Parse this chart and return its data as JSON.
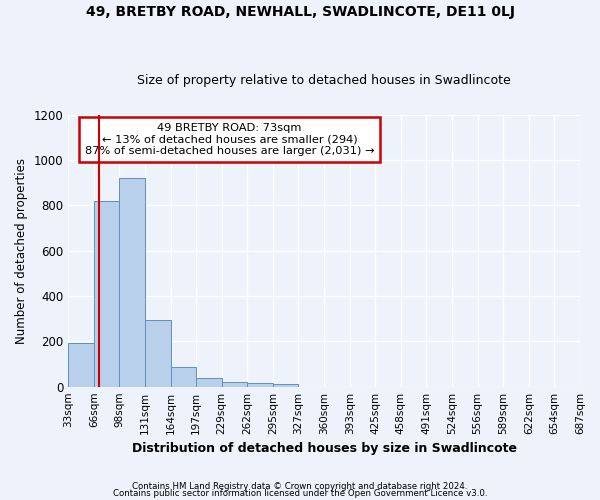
{
  "title1": "49, BRETBY ROAD, NEWHALL, SWADLINCOTE, DE11 0LJ",
  "title2": "Size of property relative to detached houses in Swadlincote",
  "xlabel": "Distribution of detached houses by size in Swadlincote",
  "ylabel": "Number of detached properties",
  "footnote1": "Contains HM Land Registry data © Crown copyright and database right 2024.",
  "footnote2": "Contains public sector information licensed under the Open Government Licence v3.0.",
  "annotation_line1": "49 BRETBY ROAD: 73sqm",
  "annotation_line2": "← 13% of detached houses are smaller (294)",
  "annotation_line3": "87% of semi-detached houses are larger (2,031) →",
  "bin_edges": [
    33,
    66,
    99,
    132,
    165,
    198,
    231,
    264,
    297,
    330,
    363,
    396,
    429,
    462,
    495,
    528,
    561,
    594,
    627,
    660,
    693
  ],
  "bar_heights": [
    192,
    820,
    922,
    293,
    85,
    37,
    22,
    15,
    10,
    0,
    0,
    0,
    0,
    0,
    0,
    0,
    0,
    0,
    0,
    0
  ],
  "bar_color": "#b8d0ea",
  "bar_edge_color": "#6090c0",
  "vline_color": "#cc0000",
  "vline_x": 73,
  "annotation_box_edge_color": "#cc0000",
  "annotation_box_face_color": "#ffffff",
  "ylim": [
    0,
    1200
  ],
  "yticks": [
    0,
    200,
    400,
    600,
    800,
    1000,
    1200
  ],
  "background_color": "#eef2fb",
  "tick_labels": [
    "33sqm",
    "66sqm",
    "98sqm",
    "131sqm",
    "164sqm",
    "197sqm",
    "229sqm",
    "262sqm",
    "295sqm",
    "327sqm",
    "360sqm",
    "393sqm",
    "425sqm",
    "458sqm",
    "491sqm",
    "524sqm",
    "556sqm",
    "589sqm",
    "622sqm",
    "654sqm",
    "687sqm"
  ]
}
